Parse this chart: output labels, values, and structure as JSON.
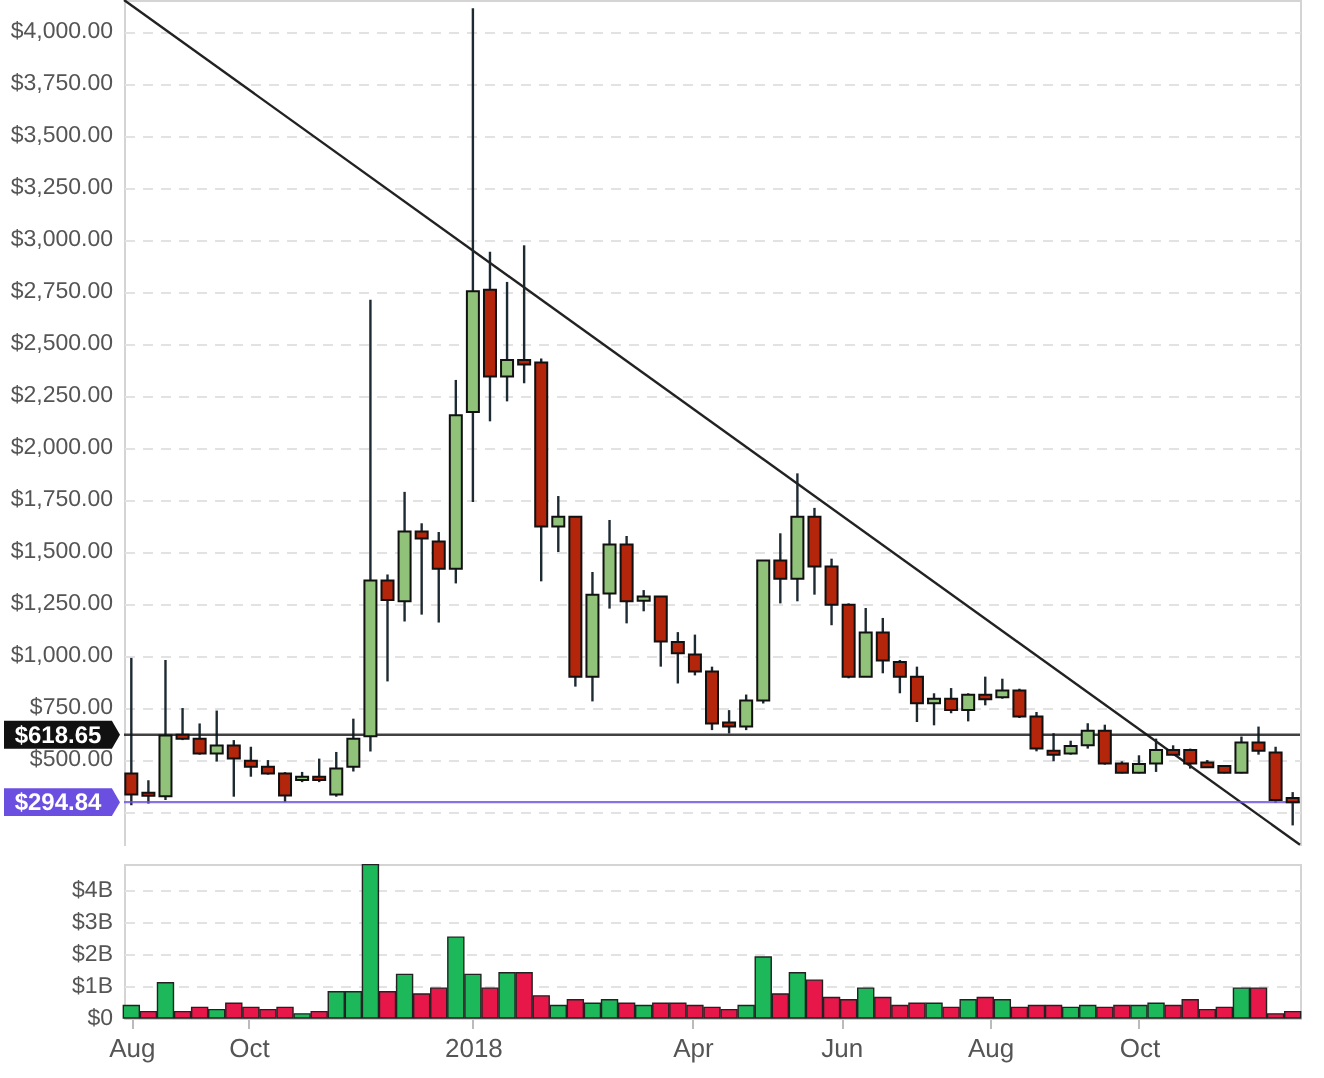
{
  "chart_data": [
    {
      "type": "candlestick",
      "x": [
        "2017-08-14",
        "2017-08-21",
        "2017-08-28",
        "2017-09-04",
        "2017-09-11",
        "2017-09-18",
        "2017-09-25",
        "2017-10-02",
        "2017-10-09",
        "2017-10-16",
        "2017-10-23",
        "2017-10-30",
        "2017-11-06",
        "2017-11-13",
        "2017-11-20",
        "2017-11-27",
        "2017-12-04",
        "2017-12-11",
        "2017-12-18",
        "2017-12-25",
        "2018-01-01",
        "2018-01-08",
        "2018-01-15",
        "2018-01-22",
        "2018-01-29",
        "2018-02-05",
        "2018-02-12",
        "2018-02-19",
        "2018-02-26",
        "2018-03-05",
        "2018-03-12",
        "2018-03-19",
        "2018-03-26",
        "2018-04-02",
        "2018-04-09",
        "2018-04-16",
        "2018-04-23",
        "2018-04-30",
        "2018-05-07",
        "2018-05-14",
        "2018-05-21",
        "2018-05-28",
        "2018-06-04",
        "2018-06-11",
        "2018-06-18",
        "2018-06-25",
        "2018-07-02",
        "2018-07-09",
        "2018-07-16",
        "2018-07-23",
        "2018-07-30",
        "2018-08-06",
        "2018-08-13",
        "2018-08-20",
        "2018-08-27",
        "2018-09-03",
        "2018-09-10",
        "2018-09-17",
        "2018-09-24",
        "2018-10-01",
        "2018-10-08",
        "2018-10-15",
        "2018-10-22",
        "2018-10-29",
        "2018-11-05",
        "2018-11-12",
        "2018-11-19",
        "2018-11-26",
        "2018-12-03"
      ],
      "ohlc": [
        [
          432,
          988,
          280,
          331
        ],
        [
          340,
          400,
          288,
          325
        ],
        [
          323,
          978,
          305,
          615
        ],
        [
          619,
          747,
          593,
          600
        ],
        [
          600,
          673,
          523,
          529
        ],
        [
          529,
          735,
          490,
          567
        ],
        [
          567,
          593,
          321,
          504
        ],
        [
          494,
          561,
          417,
          465
        ],
        [
          465,
          497,
          427,
          433
        ],
        [
          433,
          439,
          295,
          327
        ],
        [
          401,
          440,
          391,
          417
        ],
        [
          417,
          504,
          391,
          401
        ],
        [
          331,
          536,
          321,
          456
        ],
        [
          465,
          696,
          442,
          600
        ],
        [
          612,
          2709,
          538,
          1360
        ],
        [
          1360,
          1389,
          875,
          1266
        ],
        [
          1260,
          1786,
          1163,
          1596
        ],
        [
          1596,
          1635,
          1196,
          1562
        ],
        [
          1548,
          1593,
          1158,
          1417
        ],
        [
          1417,
          2324,
          1346,
          2154
        ],
        [
          2170,
          4110,
          1737,
          2750
        ],
        [
          2757,
          2940,
          2125,
          2340
        ],
        [
          2340,
          2795,
          2221,
          2420
        ],
        [
          2420,
          2971,
          2308,
          2398
        ],
        [
          2408,
          2427,
          1356,
          1619
        ],
        [
          1619,
          1766,
          1497,
          1667
        ],
        [
          1667,
          1667,
          850,
          898
        ],
        [
          898,
          1401,
          779,
          1292
        ],
        [
          1298,
          1651,
          1225,
          1533
        ],
        [
          1533,
          1574,
          1154,
          1260
        ],
        [
          1263,
          1314,
          1212,
          1283
        ],
        [
          1283,
          1283,
          946,
          1067
        ],
        [
          1064,
          1112,
          865,
          1010
        ],
        [
          1004,
          1100,
          904,
          923
        ],
        [
          923,
          946,
          641,
          673
        ],
        [
          677,
          737,
          625,
          658
        ],
        [
          658,
          812,
          641,
          783
        ],
        [
          783,
          1456,
          769,
          1456
        ],
        [
          1456,
          1587,
          1250,
          1369
        ],
        [
          1369,
          1875,
          1260,
          1667
        ],
        [
          1667,
          1709,
          1292,
          1427
        ],
        [
          1427,
          1465,
          1145,
          1244
        ],
        [
          1244,
          1250,
          890,
          898
        ],
        [
          898,
          1228,
          898,
          1110
        ],
        [
          1110,
          1180,
          914,
          975
        ],
        [
          968,
          978,
          818,
          898
        ],
        [
          898,
          946,
          680,
          770
        ],
        [
          770,
          818,
          664,
          792
        ],
        [
          792,
          843,
          722,
          738
        ],
        [
          738,
          818,
          683,
          811
        ],
        [
          811,
          898,
          760,
          789
        ],
        [
          799,
          888,
          792,
          831
        ],
        [
          831,
          840,
          699,
          706
        ],
        [
          706,
          728,
          539,
          552
        ],
        [
          542,
          626,
          491,
          523
        ],
        [
          529,
          590,
          523,
          565
        ],
        [
          568,
          674,
          552,
          638
        ],
        [
          638,
          667,
          475,
          481
        ],
        [
          481,
          491,
          433,
          436
        ],
        [
          436,
          520,
          433,
          478
        ],
        [
          481,
          600,
          440,
          545
        ],
        [
          545,
          568,
          520,
          523
        ],
        [
          545,
          552,
          456,
          481
        ],
        [
          485,
          497,
          459,
          462
        ],
        [
          469,
          472,
          433,
          436
        ],
        [
          436,
          610,
          433,
          581
        ],
        [
          581,
          658,
          523,
          542
        ],
        [
          533,
          561,
          292,
          305
        ],
        [
          315,
          343,
          183,
          294.84
        ]
      ],
      "colors": [
        "#b3260c",
        "#b3260c",
        "#90c27a",
        "#b3260c",
        "#b3260c",
        "#90c27a",
        "#b3260c",
        "#b3260c",
        "#b3260c",
        "#b3260c",
        "#90c27a",
        "#b3260c",
        "#90c27a",
        "#90c27a",
        "#90c27a",
        "#b3260c",
        "#90c27a",
        "#b3260c",
        "#b3260c",
        "#90c27a",
        "#90c27a",
        "#b3260c",
        "#90c27a",
        "#b3260c",
        "#b3260c",
        "#90c27a",
        "#b3260c",
        "#90c27a",
        "#90c27a",
        "#b3260c",
        "#90c27a",
        "#b3260c",
        "#b3260c",
        "#b3260c",
        "#b3260c",
        "#b3260c",
        "#90c27a",
        "#90c27a",
        "#b3260c",
        "#90c27a",
        "#b3260c",
        "#b3260c",
        "#b3260c",
        "#90c27a",
        "#b3260c",
        "#b3260c",
        "#b3260c",
        "#90c27a",
        "#b3260c",
        "#90c27a",
        "#b3260c",
        "#90c27a",
        "#b3260c",
        "#b3260c",
        "#b3260c",
        "#90c27a",
        "#90c27a",
        "#b3260c",
        "#b3260c",
        "#90c27a",
        "#90c27a",
        "#b3260c",
        "#b3260c",
        "#b3260c",
        "#b3260c",
        "#90c27a",
        "#b3260c",
        "#b3260c",
        "#b3260c"
      ],
      "series": [
        {
          "type": "line",
          "x": [
            "2017-08-11",
            "2018-12-06"
          ],
          "values": [
            4150,
            90
          ],
          "color": "#222222"
        }
      ],
      "xlim": [
        "2017-08-11",
        "2018-12-06"
      ],
      "ylim": [
        84,
        4150
      ],
      "yticks": [
        {
          "value": 250,
          "label": null
        },
        {
          "value": 500,
          "label": "$500.00"
        },
        {
          "value": 750,
          "label": "$750.00"
        },
        {
          "value": 1000,
          "label": "$1,000.00"
        },
        {
          "value": 1250,
          "label": "$1,250.00"
        },
        {
          "value": 1500,
          "label": "$1,500.00"
        },
        {
          "value": 1750,
          "label": "$1,750.00"
        },
        {
          "value": 2000,
          "label": "$2,000.00"
        },
        {
          "value": 2250,
          "label": "$2,250.00"
        },
        {
          "value": 2500,
          "label": "$2,500.00"
        },
        {
          "value": 2750,
          "label": "$2,750.00"
        },
        {
          "value": 3000,
          "label": "$3,000.00"
        },
        {
          "value": 3250,
          "label": "$3,250.00"
        },
        {
          "value": 3500,
          "label": "$3,500.00"
        },
        {
          "value": 3750,
          "label": "$3,750.00"
        },
        {
          "value": 4000,
          "label": "$4,000.00"
        }
      ],
      "ref_lines": [
        {
          "axis": "y",
          "value": 618.65,
          "label": "$618.65",
          "color": "#111111"
        },
        {
          "axis": "y",
          "value": 294.84,
          "label": "$294.84",
          "color": "#6b4fe0"
        }
      ],
      "grid": "y",
      "tick_labels": "y"
    },
    {
      "type": "bar",
      "x": [
        "2017-08-14",
        "2017-08-21",
        "2017-08-28",
        "2017-09-04",
        "2017-09-11",
        "2017-09-18",
        "2017-09-25",
        "2017-10-02",
        "2017-10-09",
        "2017-10-16",
        "2017-10-23",
        "2017-10-30",
        "2017-11-06",
        "2017-11-13",
        "2017-11-20",
        "2017-11-27",
        "2017-12-04",
        "2017-12-11",
        "2017-12-18",
        "2017-12-25",
        "2018-01-01",
        "2018-01-08",
        "2018-01-15",
        "2018-01-22",
        "2018-01-29",
        "2018-02-05",
        "2018-02-12",
        "2018-02-19",
        "2018-02-26",
        "2018-03-05",
        "2018-03-12",
        "2018-03-19",
        "2018-03-26",
        "2018-04-02",
        "2018-04-09",
        "2018-04-16",
        "2018-04-23",
        "2018-04-30",
        "2018-05-07",
        "2018-05-14",
        "2018-05-21",
        "2018-05-28",
        "2018-06-04",
        "2018-06-11",
        "2018-06-18",
        "2018-06-25",
        "2018-07-02",
        "2018-07-09",
        "2018-07-16",
        "2018-07-23",
        "2018-07-30",
        "2018-08-06",
        "2018-08-13",
        "2018-08-20",
        "2018-08-27",
        "2018-09-03",
        "2018-09-10",
        "2018-09-17",
        "2018-09-24",
        "2018-10-01",
        "2018-10-08",
        "2018-10-15",
        "2018-10-22",
        "2018-10-29",
        "2018-11-05",
        "2018-11-12",
        "2018-11-19",
        "2018-11-26",
        "2018-12-03"
      ],
      "values": [
        0.39,
        0.2,
        1.1,
        0.2,
        0.33,
        0.26,
        0.46,
        0.33,
        0.26,
        0.33,
        0.13,
        0.2,
        0.82,
        0.82,
        4.78,
        0.82,
        1.36,
        0.75,
        0.93,
        2.52,
        1.36,
        0.93,
        1.41,
        1.41,
        0.69,
        0.39,
        0.57,
        0.46,
        0.57,
        0.46,
        0.39,
        0.46,
        0.46,
        0.39,
        0.33,
        0.26,
        0.39,
        1.9,
        0.75,
        1.41,
        1.18,
        0.64,
        0.57,
        0.93,
        0.64,
        0.39,
        0.46,
        0.46,
        0.33,
        0.57,
        0.64,
        0.57,
        0.33,
        0.39,
        0.39,
        0.33,
        0.39,
        0.33,
        0.39,
        0.39,
        0.46,
        0.39,
        0.57,
        0.26,
        0.33,
        0.93,
        0.93,
        0.13,
        0.2
      ],
      "colors": [
        "#1cb85a",
        "#e8174a",
        "#1cb85a",
        "#e8174a",
        "#e8174a",
        "#1cb85a",
        "#e8174a",
        "#e8174a",
        "#e8174a",
        "#e8174a",
        "#1cb85a",
        "#e8174a",
        "#1cb85a",
        "#1cb85a",
        "#1cb85a",
        "#e8174a",
        "#1cb85a",
        "#e8174a",
        "#e8174a",
        "#1cb85a",
        "#1cb85a",
        "#e8174a",
        "#1cb85a",
        "#e8174a",
        "#e8174a",
        "#1cb85a",
        "#e8174a",
        "#1cb85a",
        "#1cb85a",
        "#e8174a",
        "#1cb85a",
        "#e8174a",
        "#e8174a",
        "#e8174a",
        "#e8174a",
        "#e8174a",
        "#1cb85a",
        "#1cb85a",
        "#e8174a",
        "#1cb85a",
        "#e8174a",
        "#e8174a",
        "#e8174a",
        "#1cb85a",
        "#e8174a",
        "#e8174a",
        "#e8174a",
        "#1cb85a",
        "#e8174a",
        "#1cb85a",
        "#e8174a",
        "#1cb85a",
        "#e8174a",
        "#e8174a",
        "#e8174a",
        "#1cb85a",
        "#1cb85a",
        "#e8174a",
        "#e8174a",
        "#1cb85a",
        "#1cb85a",
        "#e8174a",
        "#e8174a",
        "#e8174a",
        "#e8174a",
        "#1cb85a",
        "#e8174a",
        "#e8174a",
        "#e8174a"
      ],
      "xlim": [
        "2017-08-11",
        "2018-12-06"
      ],
      "xticks": [
        {
          "value": "2017-08-14",
          "label": "Aug"
        },
        {
          "value": "2017-10-01",
          "label": "Oct"
        },
        {
          "value": "2018-01-01",
          "label": "2018"
        },
        {
          "value": "2018-04-01",
          "label": "Apr"
        },
        {
          "value": "2018-06-01",
          "label": "Jun"
        },
        {
          "value": "2018-08-01",
          "label": "Aug"
        },
        {
          "value": "2018-10-01",
          "label": "Oct"
        }
      ],
      "ylim": [
        0,
        4.8
      ],
      "yticks": [
        {
          "value": 0,
          "label": "$0"
        },
        {
          "value": 1,
          "label": "$1B"
        },
        {
          "value": 2,
          "label": "$2B"
        },
        {
          "value": 3,
          "label": "$3B"
        },
        {
          "value": 4,
          "label": "$4B"
        }
      ],
      "grid": "y"
    }
  ]
}
